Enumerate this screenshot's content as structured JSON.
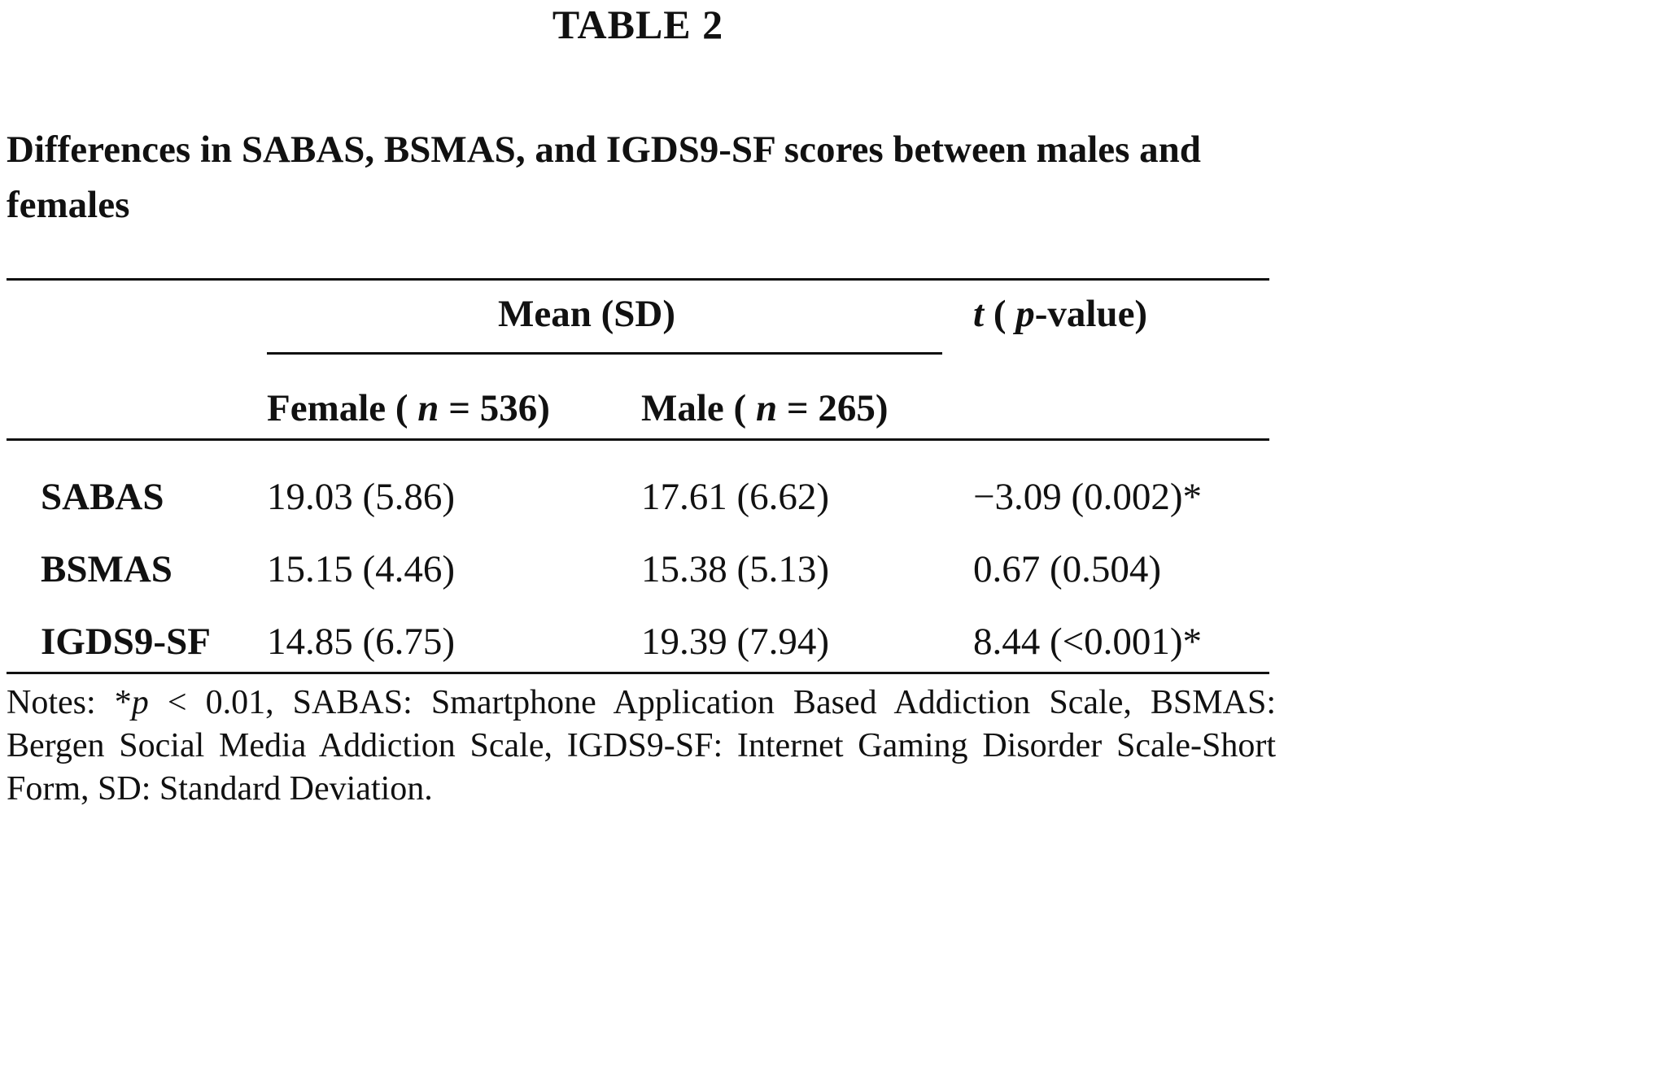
{
  "table_label": "TABLE 2",
  "caption": "Differences in SABAS, BSMAS, and IGDS9-SF scores between males and females",
  "header": {
    "mean_sd": "Mean (SD)",
    "t_label": "t",
    "t_open": " ( ",
    "p_label": "p",
    "t_rest": "-value)",
    "female": {
      "label": "Female ( ",
      "n": "n",
      "value": " = 536)"
    },
    "male": {
      "label": "Male ( ",
      "n": "n",
      "value": " = 265)"
    }
  },
  "rows": [
    {
      "label": "SABAS",
      "female": "19.03 (5.86)",
      "male": "17.61 (6.62)",
      "t": "−3.09 (0.002)*"
    },
    {
      "label": "BSMAS",
      "female": "15.15 (4.46)",
      "male": "15.38 (5.13)",
      "t": "0.67 (0.504)"
    },
    {
      "label": "IGDS9-SF",
      "female": "14.85 (6.75)",
      "male": "19.39 (7.94)",
      "t": "8.44 (<0.001)*"
    }
  ],
  "notes": {
    "prefix": "Notes: *",
    "p": "p",
    "text": " < 0.01, SABAS: Smartphone Application Based Addiction Scale, BSMAS: Bergen Social Media Addiction Scale, IGDS9-SF: Internet Gaming Disorder Scale-Short Form, SD: Standard Deviation."
  }
}
